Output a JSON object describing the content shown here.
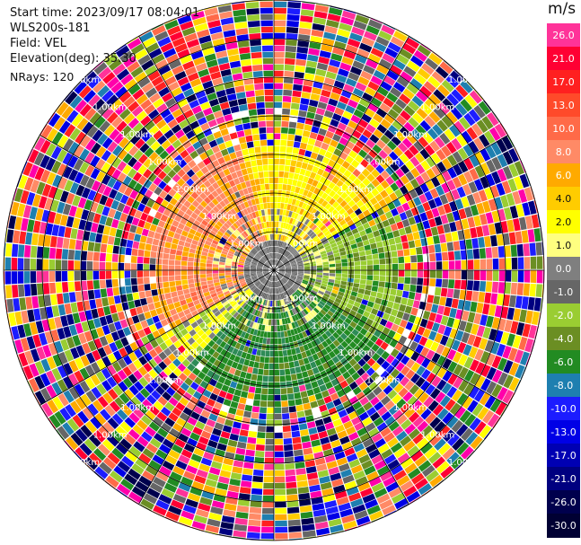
{
  "header": {
    "start_time": "Start time: 2023/09/17 08:04:01",
    "instrument": "WLS200s-181",
    "field": "Field: VEL",
    "elevation": "Elevation(deg): 35.30",
    "nrays": "NRays: 120"
  },
  "colorbar": {
    "unit": "m/s",
    "ticks": [
      {
        "label": "26.0",
        "color": "#ff3399"
      },
      {
        "label": "21.0",
        "color": "#ff0033"
      },
      {
        "label": "17.0",
        "color": "#ff2020"
      },
      {
        "label": "13.0",
        "color": "#ff4a2a"
      },
      {
        "label": "10.0",
        "color": "#ff6a48"
      },
      {
        "label": "8.0",
        "color": "#ff8a66"
      },
      {
        "label": "6.0",
        "color": "#ffaa00"
      },
      {
        "label": "4.0",
        "color": "#ffcc00"
      },
      {
        "label": "2.0",
        "color": "#ffff00"
      },
      {
        "label": "1.0",
        "color": "#ffff80"
      },
      {
        "label": "0.0",
        "color": "#7f7f7f"
      },
      {
        "label": "-1.0",
        "color": "#666666"
      },
      {
        "label": "-2.0",
        "color": "#9acd32"
      },
      {
        "label": "-4.0",
        "color": "#6b8e23"
      },
      {
        "label": "-6.0",
        "color": "#228b22"
      },
      {
        "label": "-8.0",
        "color": "#1e7fb0"
      },
      {
        "label": "-10.0",
        "color": "#1c1cff"
      },
      {
        "label": "-13.0",
        "color": "#0000e6"
      },
      {
        "label": "-17.0",
        "color": "#0000b3"
      },
      {
        "label": "-21.0",
        "color": "#000080"
      },
      {
        "label": "-26.0",
        "color": "#00004d"
      },
      {
        "label": "-30.0",
        "color": "#000033"
      }
    ]
  },
  "range_ring_label": "1.00km",
  "range_rings": 7
}
